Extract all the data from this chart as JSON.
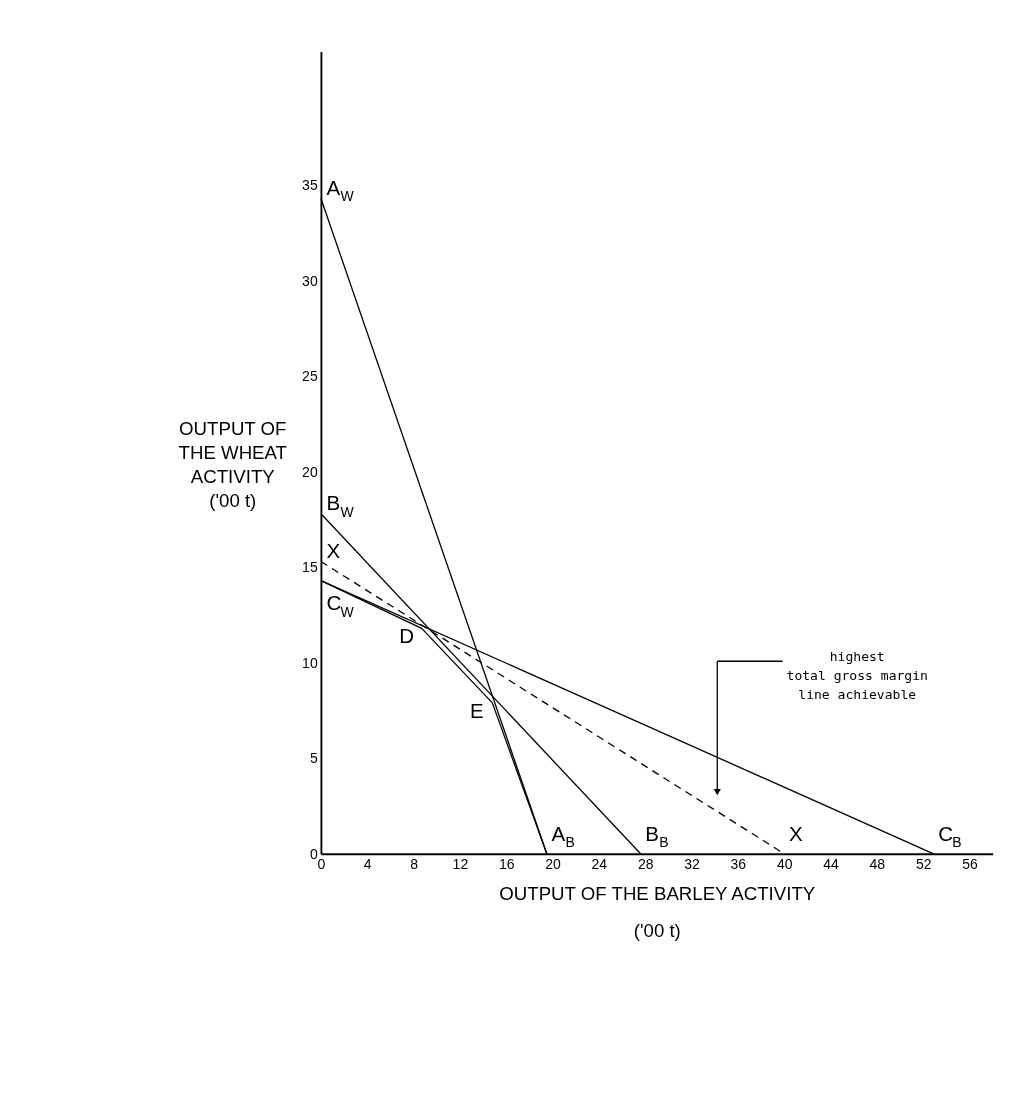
{
  "chart_data": {
    "type": "line",
    "xlabel": "OUTPUT OF THE BARLEY ACTIVITY\n('00 t)",
    "ylabel": "OUTPUT OF\nTHE WHEAT\nACTIVITY\n('00 t)",
    "xlim": [
      0,
      58
    ],
    "ylim": [
      0,
      42
    ],
    "xticks": [
      0,
      4,
      8,
      12,
      16,
      20,
      24,
      28,
      32,
      36,
      40,
      44,
      48,
      52,
      56
    ],
    "yticks": [
      0,
      5,
      10,
      15,
      20,
      25,
      30,
      35
    ],
    "grid": false,
    "marker": "none",
    "series": [
      {
        "color": "#000000",
        "x": [
          0,
          19.5
        ],
        "values": [
          34.3,
          0
        ]
      },
      {
        "color": "#000000",
        "x": [
          0,
          27.6
        ],
        "values": [
          17.8,
          0
        ]
      },
      {
        "color": "#000000",
        "x": [
          0,
          52.9
        ],
        "values": [
          14.3,
          0
        ]
      },
      {
        "color": "#000000",
        "x": [
          0,
          40
        ],
        "values": [
          15.3,
          0
        ],
        "line_style": "dashed"
      },
      {
        "color": "#000000",
        "x": [
          0,
          8.7,
          14.8,
          19.5
        ],
        "values": [
          14.3,
          11.8,
          7.9,
          0
        ]
      }
    ],
    "annotations": [
      {
        "text": "A$_{W}$",
        "x": 0,
        "y": 34.3
      },
      {
        "text": "B$_{W}$",
        "x": 0,
        "y": 17.8
      },
      {
        "text": "X",
        "x": 0,
        "y": 15.3
      },
      {
        "text": "C$_{W}$",
        "x": 0,
        "y": 14.3
      },
      {
        "text": "D",
        "x": 8.7,
        "y": 11.8
      },
      {
        "text": "E",
        "x": 14.8,
        "y": 7.9
      },
      {
        "text": "A$_{B}$",
        "x": 19.5,
        "y": 0
      },
      {
        "text": "B$_{B}$",
        "x": 27.6,
        "y": 0
      },
      {
        "text": "X",
        "x": 40,
        "y": 0
      },
      {
        "text": "C$_{B}$",
        "x": 52.9,
        "y": 0
      },
      "highest\ntotal gross margin\nline achievable"
    ]
  }
}
